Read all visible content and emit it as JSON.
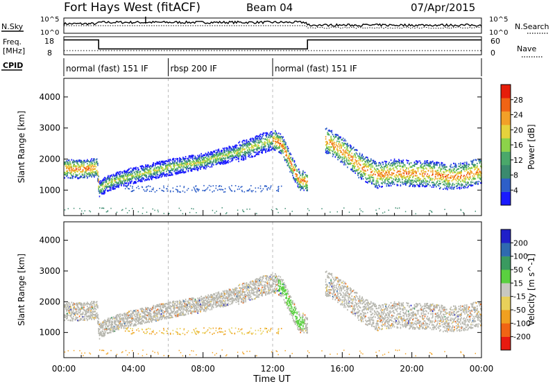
{
  "header": {
    "station": "Fort Hays West (fitACF)",
    "beam": "Beam 04",
    "date": "07/Apr/2015"
  },
  "strip_labels": {
    "nsky": "N.Sky",
    "nsky_ticks": [
      "10^5",
      "10^0"
    ],
    "nsearch": "N.Search",
    "nsearch_ticks": [
      "10^5",
      "10^0"
    ],
    "freq": "Freq.",
    "freq_unit": "[MHz]",
    "freq_ticks": [
      "18",
      "8"
    ],
    "nave": "Nave",
    "nave_ticks": [
      "60",
      "0"
    ],
    "cpid": "CPID"
  },
  "modes": [
    {
      "label": "normal (fast) 151 IF",
      "start": 0,
      "end": 6
    },
    {
      "label": "rbsp 200 IF",
      "start": 6,
      "end": 12
    },
    {
      "label": "normal (fast) 151 IF",
      "start": 12,
      "end": 24
    }
  ],
  "freq_segments": [
    {
      "start": 0,
      "end": 2,
      "mhz": 17.5
    },
    {
      "start": 2,
      "end": 14,
      "mhz": 10.5
    },
    {
      "start": 14,
      "end": 24,
      "mhz": 17.5
    }
  ],
  "colors": {
    "power_scale": [
      "#1a1aff",
      "#2e5fc8",
      "#3a8a6e",
      "#4aa86a",
      "#8cd24a",
      "#e6d23c",
      "#f2a028",
      "#f06414",
      "#e61e0a"
    ],
    "velocity_scale": [
      "#2020c8",
      "#2f6ab0",
      "#3a9a60",
      "#5ad040",
      "#c8c8c0",
      "#e8d05a",
      "#f0a020",
      "#f06414",
      "#e81a10"
    ],
    "ground_scatter": "#b8b8b0"
  },
  "chart_data": [
    {
      "type": "heatmap",
      "name": "power-panel",
      "ylabel": "Slant Range [km]",
      "xlim": [
        0,
        24
      ],
      "ylim": [
        180,
        4600
      ],
      "yticks": [
        "1000",
        "2000",
        "3000",
        "4000"
      ],
      "colorbar": {
        "label": "Power [dB]",
        "range": [
          0,
          32
        ],
        "ticks": [
          "4",
          "8",
          "12",
          "16",
          "20",
          "24",
          "28"
        ]
      },
      "band": {
        "hours": [
          0,
          1,
          1.9,
          2.0,
          2.5,
          4,
          6,
          8,
          10,
          11,
          12,
          12.5,
          13,
          13.5,
          14,
          14.5,
          15,
          16,
          17,
          18,
          19,
          20,
          21,
          22,
          23,
          24
        ],
        "center_km": [
          1700,
          1700,
          1750,
          1050,
          1250,
          1500,
          1750,
          1950,
          2250,
          2450,
          2650,
          2500,
          1900,
          1350,
          1300,
          null,
          2650,
          2300,
          1800,
          1500,
          1600,
          1550,
          1550,
          1450,
          1500,
          1650
        ]
      }
    },
    {
      "type": "heatmap",
      "name": "velocity-panel",
      "xlabel": "Time UT",
      "ylabel": "Slant Range [km]",
      "xlim": [
        0,
        24
      ],
      "ylim": [
        180,
        4600
      ],
      "xticks": [
        "00:00",
        "04:00",
        "08:00",
        "12:00",
        "16:00",
        "20:00",
        "00:00"
      ],
      "yticks": [
        "1000",
        "2000",
        "3000",
        "4000"
      ],
      "colorbar": {
        "label": "Velocity [m s^-1]",
        "range": [
          -250,
          250
        ],
        "ticks": [
          "200",
          "100",
          "50",
          "15",
          "-15",
          "-50",
          "-100",
          "-200"
        ]
      }
    }
  ]
}
